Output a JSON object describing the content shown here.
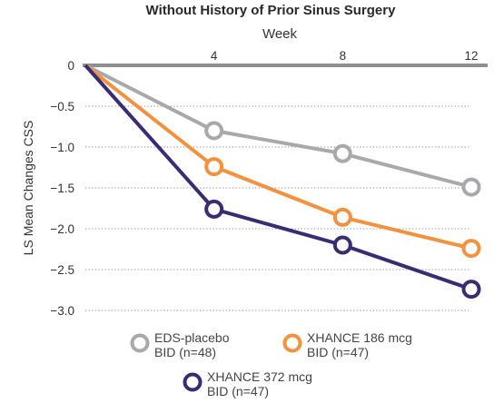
{
  "chart_data": {
    "type": "line",
    "title": "Without History of Prior Sinus Surgery",
    "xlabel": "Week",
    "ylabel": "LS Mean Changes CSS",
    "x": [
      0,
      4,
      8,
      12
    ],
    "x_ticks": [
      "4",
      "8",
      "12"
    ],
    "xlim": [
      0,
      12
    ],
    "ylim": [
      -3.0,
      0
    ],
    "y_ticks": [
      "0",
      "−0.5",
      "−1.0",
      "−1.5",
      "−2.0",
      "−2.5",
      "−3.0"
    ],
    "grid": "horizontal-dotted",
    "legend_position": "bottom",
    "series": [
      {
        "name": "EDS-placebo",
        "name_line2": "BID (n=48)",
        "color": "#a7a9ac",
        "values": [
          0,
          -0.8,
          -1.08,
          -1.49
        ]
      },
      {
        "name": "XHANCE 186 mcg",
        "name_line2": "BID (n=47)",
        "color": "#f4913c",
        "values": [
          0,
          -1.24,
          -1.86,
          -2.24
        ]
      },
      {
        "name": "XHANCE 372 mcg",
        "name_line2": "BID (n=47)",
        "color": "#3b2a74",
        "values": [
          0,
          -1.76,
          -2.2,
          -2.74
        ]
      }
    ]
  }
}
